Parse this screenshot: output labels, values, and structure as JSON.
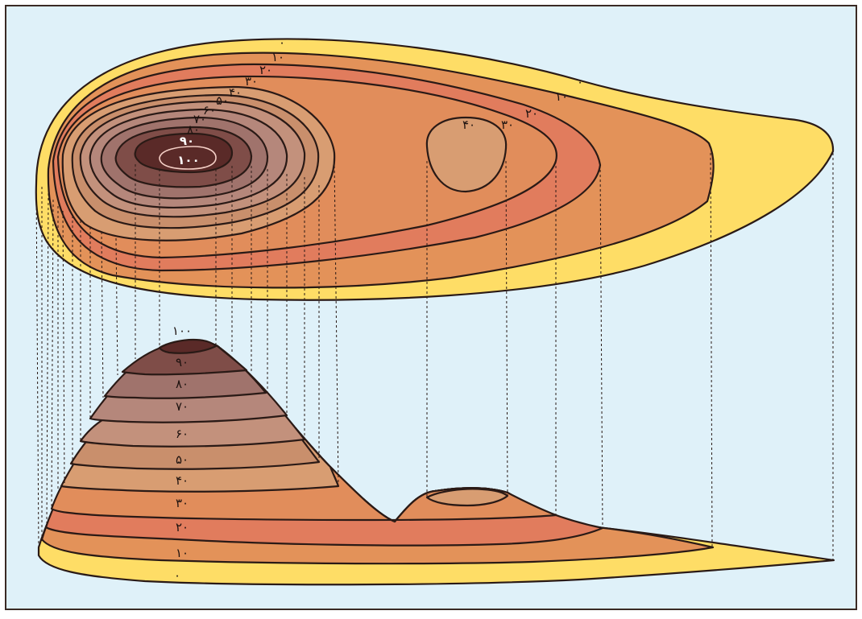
{
  "colors": {
    "background": "#dff1f9",
    "frame": "#3a2a24",
    "band_0": "#fedd66",
    "band_10": "#e39259",
    "band_20": "#e17c5d",
    "band_30": "#e18d5b",
    "band_40": "#d89d72",
    "band_50": "#c98f6c",
    "band_60": "#c3917c",
    "band_70": "#b5877b",
    "band_80": "#a0736c",
    "band_90": "#7f4d48",
    "band_100": "#5a2a28"
  },
  "map_labels": {
    "c0": "۰",
    "c10": "۱۰",
    "c20": "۲۰",
    "c30": "۳۰",
    "c40": "۴۰",
    "c50": "۵۰",
    "c60": "۶۰",
    "c70": "۷۰",
    "c80": "۸۰",
    "c90": "۹۰",
    "c100": "۱۰۰",
    "east_c0": "۰",
    "east_c10": "۱۰",
    "east_c20": "۲۰",
    "east_c30": "۳۰",
    "hill_c40": "۴۰"
  },
  "profile_labels": {
    "p100": "۱۰۰",
    "p90": "۹۰",
    "p80": "۸۰",
    "p70": "۷۰",
    "p60": "۶۰",
    "p50": "۵۰",
    "p40": "۴۰",
    "p30": "۳۰",
    "p20": "۲۰",
    "p10": "۱۰",
    "p0": "۰"
  }
}
